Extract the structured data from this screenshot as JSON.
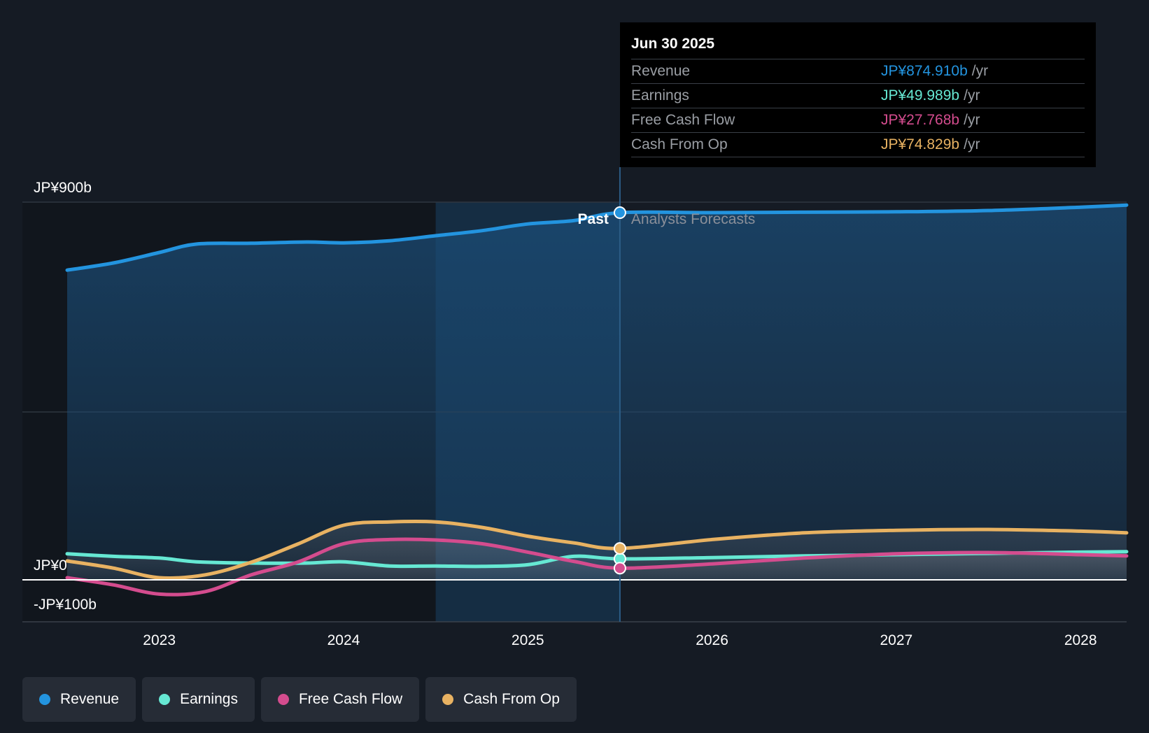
{
  "chart_data": {
    "type": "line",
    "title": "",
    "unit_prefix": "JP¥",
    "ylim": [
      -100,
      900
    ],
    "x_range": [
      2022.5,
      2028.25
    ],
    "y_ticks": [
      {
        "value": 900,
        "label": "JP¥900b"
      },
      {
        "value": 0,
        "label": "JP¥0"
      },
      {
        "value": -100,
        "label": "-JP¥100b"
      }
    ],
    "x_ticks": [
      {
        "value": 2023,
        "label": "2023"
      },
      {
        "value": 2024,
        "label": "2024"
      },
      {
        "value": 2025,
        "label": "2025"
      },
      {
        "value": 2026,
        "label": "2026"
      },
      {
        "value": 2027,
        "label": "2027"
      },
      {
        "value": 2028,
        "label": "2028"
      }
    ],
    "divider_x": 2025.5,
    "highlight_start_x": 2024.5,
    "past_label": "Past",
    "forecast_label": "Analysts Forecasts",
    "series": [
      {
        "name": "Revenue",
        "color": "#2394df",
        "points": [
          [
            2022.5,
            738
          ],
          [
            2022.75,
            755
          ],
          [
            2023,
            780
          ],
          [
            2023.2,
            800
          ],
          [
            2023.5,
            802
          ],
          [
            2023.8,
            805
          ],
          [
            2024,
            803
          ],
          [
            2024.25,
            808
          ],
          [
            2024.5,
            820
          ],
          [
            2024.75,
            832
          ],
          [
            2025,
            848
          ],
          [
            2025.25,
            856
          ],
          [
            2025.5,
            874.9
          ],
          [
            2026,
            875
          ],
          [
            2026.5,
            876
          ],
          [
            2027,
            877
          ],
          [
            2027.5,
            880
          ],
          [
            2028,
            888
          ],
          [
            2028.25,
            893
          ]
        ]
      },
      {
        "name": "Earnings",
        "color": "#66e8d3",
        "points": [
          [
            2022.5,
            62
          ],
          [
            2022.75,
            56
          ],
          [
            2023,
            52
          ],
          [
            2023.2,
            43
          ],
          [
            2023.5,
            40
          ],
          [
            2023.8,
            40
          ],
          [
            2024,
            43
          ],
          [
            2024.25,
            33
          ],
          [
            2024.5,
            33
          ],
          [
            2024.75,
            32
          ],
          [
            2025,
            36
          ],
          [
            2025.25,
            56
          ],
          [
            2025.5,
            49.989
          ],
          [
            2026,
            53
          ],
          [
            2026.5,
            57
          ],
          [
            2027,
            60
          ],
          [
            2027.5,
            63
          ],
          [
            2028,
            66
          ],
          [
            2028.25,
            67
          ]
        ]
      },
      {
        "name": "Free Cash Flow",
        "color": "#d44c8e",
        "points": [
          [
            2022.5,
            5
          ],
          [
            2022.75,
            -12
          ],
          [
            2023,
            -34
          ],
          [
            2023.25,
            -28
          ],
          [
            2023.5,
            12
          ],
          [
            2023.75,
            42
          ],
          [
            2024,
            86
          ],
          [
            2024.25,
            96
          ],
          [
            2024.5,
            95
          ],
          [
            2024.75,
            86
          ],
          [
            2025,
            66
          ],
          [
            2025.25,
            44
          ],
          [
            2025.5,
            27.768
          ],
          [
            2026,
            38
          ],
          [
            2026.5,
            52
          ],
          [
            2027,
            62
          ],
          [
            2027.5,
            65
          ],
          [
            2028,
            60
          ],
          [
            2028.25,
            57
          ]
        ]
      },
      {
        "name": "Cash From Op",
        "color": "#e8b262",
        "points": [
          [
            2022.5,
            45
          ],
          [
            2022.75,
            28
          ],
          [
            2023,
            5
          ],
          [
            2023.25,
            12
          ],
          [
            2023.5,
            42
          ],
          [
            2023.75,
            85
          ],
          [
            2024,
            130
          ],
          [
            2024.25,
            138
          ],
          [
            2024.5,
            138
          ],
          [
            2024.75,
            125
          ],
          [
            2025,
            104
          ],
          [
            2025.25,
            88
          ],
          [
            2025.5,
            74.829
          ],
          [
            2026,
            96
          ],
          [
            2026.5,
            112
          ],
          [
            2027,
            118
          ],
          [
            2027.5,
            120
          ],
          [
            2028,
            116
          ],
          [
            2028.25,
            112
          ]
        ]
      }
    ]
  },
  "tooltip": {
    "date": "Jun 30 2025",
    "unit": "/yr",
    "rows": [
      {
        "label": "Revenue",
        "value": "JP¥874.910b",
        "color": "#2394df"
      },
      {
        "label": "Earnings",
        "value": "JP¥49.989b",
        "color": "#66e8d3"
      },
      {
        "label": "Free Cash Flow",
        "value": "JP¥27.768b",
        "color": "#d44c8e"
      },
      {
        "label": "Cash From Op",
        "value": "JP¥74.829b",
        "color": "#e8b262"
      }
    ]
  },
  "legend": [
    {
      "label": "Revenue",
      "color": "#2394df"
    },
    {
      "label": "Earnings",
      "color": "#66e8d3"
    },
    {
      "label": "Free Cash Flow",
      "color": "#d44c8e"
    },
    {
      "label": "Cash From Op",
      "color": "#e8b262"
    }
  ]
}
